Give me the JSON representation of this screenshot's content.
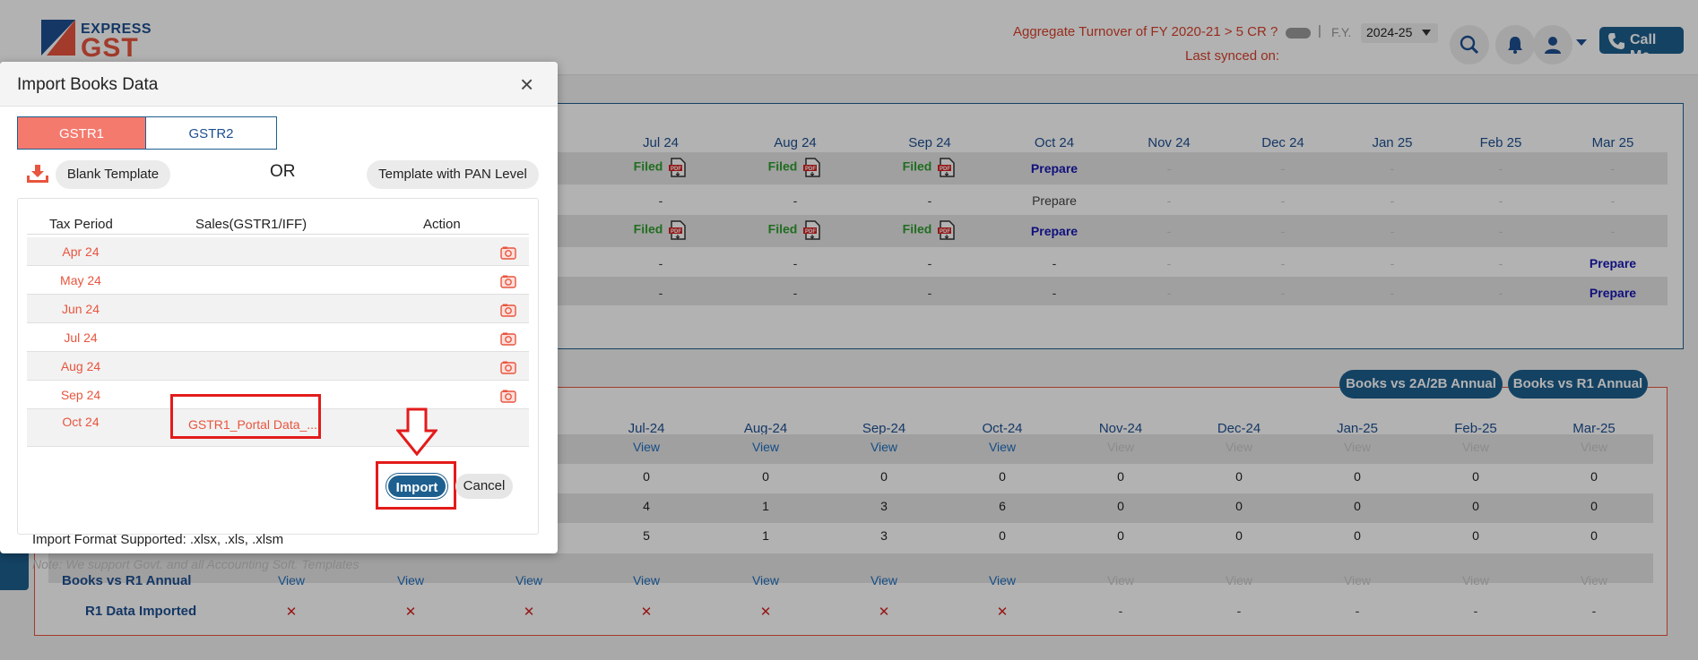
{
  "header": {
    "logo_top": "EXPRESS",
    "logo_bottom": "GST",
    "turnover_text": "Aggregate Turnover of FY 2020-21 > 5 CR ?",
    "pipe": "|",
    "fy_label": "F.Y.",
    "fy_value": "2024-25",
    "synced_text": "Last synced on:",
    "call_me": "Call Me",
    "icons": [
      "search-icon",
      "bell-icon",
      "user-icon",
      "chevron-down-icon",
      "phone-icon"
    ],
    "brand_color": "#1d5f8f",
    "accent_color": "#e8553e"
  },
  "gst_panel": {
    "months": [
      "Jul 24",
      "Aug 24",
      "Sep 24",
      "Oct 24",
      "Nov 24",
      "Dec 24",
      "Jan 25",
      "Feb 25",
      "Mar 25"
    ],
    "filed": "Filed",
    "prepare": "Prepare",
    "dash": "-",
    "rows": [
      [
        "Filed",
        "Filed",
        "Filed",
        "Prepare",
        "-",
        "-",
        "-",
        "-",
        "-"
      ],
      [
        "-",
        "-",
        "-",
        "Prepare",
        "-",
        "-",
        "-",
        "-",
        "-"
      ],
      [
        "Filed",
        "Filed",
        "Filed",
        "Prepare",
        "-",
        "-",
        "-",
        "-",
        "-"
      ],
      [
        "-",
        "-",
        "-",
        "-",
        "-",
        "-",
        "-",
        "-",
        "Prepare"
      ],
      [
        "-",
        "-",
        "-",
        "-",
        "-",
        "-",
        "-",
        "-",
        "Prepare"
      ]
    ]
  },
  "reco_panel": {
    "btn_2a2b": "Books vs 2A/2B Annual",
    "btn_r1": "Books vs R1 Annual",
    "months": [
      "Jul-24",
      "Aug-24",
      "Sep-24",
      "Oct-24",
      "Nov-24",
      "Dec-24",
      "Jan-25",
      "Feb-25",
      "Mar-25"
    ],
    "view": "View",
    "row_view": [
      "View",
      "View",
      "View",
      "View",
      "View",
      "View",
      "View",
      "View",
      "View"
    ],
    "row_a": [
      "0",
      "0",
      "0",
      "0",
      "0",
      "0",
      "0",
      "0",
      "0"
    ],
    "row_b": [
      "4",
      "1",
      "3",
      "6",
      "0",
      "0",
      "0",
      "0",
      "0"
    ],
    "row_c": [
      "5",
      "1",
      "3",
      "0",
      "0",
      "0",
      "0",
      "0",
      "0"
    ],
    "label_r1": "Books vs R1 Annual",
    "label_imported": "R1 Data Imported",
    "x_mark": "✕",
    "dash": "-"
  },
  "modal": {
    "title": "Import Books Data",
    "close": "×",
    "tab_gstr1": "GSTR1",
    "tab_gstr2": "GSTR2",
    "blank_template": "Blank Template",
    "or": "OR",
    "pan_template": "Template with PAN Level",
    "col_period": "Tax Period",
    "col_sales": "Sales(GSTR1/IFF)",
    "col_action": "Action",
    "periods": [
      "Apr 24",
      "May 24",
      "Jun 24",
      "Jul 24",
      "Aug 24",
      "Sep 24",
      "Oct 24"
    ],
    "file_name": "GSTR1_Portal Data_...",
    "import": "Import",
    "cancel": "Cancel",
    "format": "Import Format Supported: .xlsx, .xls, .xlsm",
    "note": "Note: We support Govt. and all Accounting Soft. Templates"
  }
}
